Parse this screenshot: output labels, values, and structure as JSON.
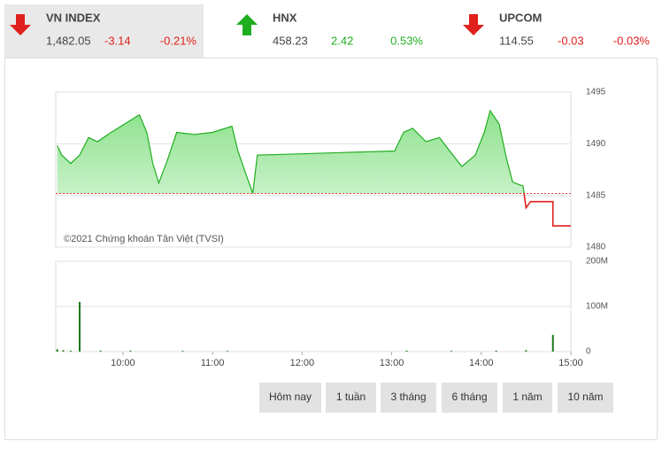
{
  "tickers": [
    {
      "name": "VN INDEX",
      "value": "1,482.05",
      "change": "-3.14",
      "percent": "-0.21%",
      "direction": "down"
    },
    {
      "name": "HNX",
      "value": "458.23",
      "change": "2.42",
      "percent": "0.53%",
      "direction": "up"
    },
    {
      "name": "UPCOM",
      "value": "114.55",
      "change": "-0.03",
      "percent": "-0.03%",
      "direction": "down"
    }
  ],
  "chart_data": [
    {
      "type": "line",
      "annotation": "©2021 Chứng khoán Tân Việt (TVSI)",
      "x": [
        "09:16",
        "09:19",
        "09:25",
        "09:31",
        "09:37",
        "09:43",
        "09:52",
        "10:01",
        "10:11",
        "10:16",
        "10:20",
        "10:24",
        "10:30",
        "10:36",
        "10:48",
        "11:00",
        "11:13",
        "11:17",
        "11:23",
        "11:27",
        "11:30",
        "13:02",
        "13:08",
        "13:14",
        "13:23",
        "13:32",
        "13:41",
        "13:47",
        "13:56",
        "14:02",
        "14:06",
        "14:12",
        "14:17",
        "14:21",
        "14:28",
        "14:30",
        "14:33",
        "14:48",
        "14:48",
        "15:00"
      ],
      "values": [
        1489.8,
        1488.9,
        1488.1,
        1488.9,
        1490.6,
        1490.2,
        1491.1,
        1491.9,
        1492.8,
        1491.1,
        1488.1,
        1486.2,
        1488.5,
        1491.1,
        1490.9,
        1491.1,
        1491.7,
        1489.3,
        1486.8,
        1485.2,
        1488.9,
        1489.3,
        1491.1,
        1491.5,
        1490.2,
        1490.6,
        1488.9,
        1487.8,
        1488.9,
        1491.1,
        1493.2,
        1491.9,
        1488.5,
        1486.3,
        1485.9,
        1483.8,
        1484.4,
        1484.4,
        1482.05,
        1482.05
      ],
      "reference": 1485.19,
      "colors": {
        "above": "#1fae1f",
        "below": "#e0201c"
      },
      "xlim": [
        "09:15",
        "15:00"
      ],
      "ylim": [
        1480,
        1495
      ],
      "yticks": [
        1480,
        1485,
        1490,
        1495
      ],
      "grid": true
    },
    {
      "type": "bar",
      "color": "#1a7a1a",
      "x": [
        "09:16",
        "09:20",
        "09:25",
        "09:31",
        "09:45",
        "10:05",
        "10:40",
        "11:10",
        "13:10",
        "13:40",
        "14:10",
        "14:30",
        "14:48"
      ],
      "values": [
        5000000,
        3000000,
        2000000,
        110000000,
        2000000,
        2000000,
        1500000,
        1500000,
        2000000,
        1500000,
        2000000,
        3000000,
        37000000
      ],
      "xlim": [
        "09:15",
        "15:00"
      ],
      "xticks": [
        "10:00",
        "11:00",
        "12:00",
        "13:00",
        "14:00",
        "15:00"
      ],
      "ylim": [
        0,
        200000000
      ],
      "yticks": [
        0,
        {
          "value": 100000000,
          "label": "100M"
        },
        {
          "value": 200000000,
          "label": "200M"
        }
      ],
      "grid": true
    }
  ],
  "buttons": [
    "Hôm nay",
    "1 tuần",
    "3 tháng",
    "6 tháng",
    "1 năm",
    "10 năm"
  ]
}
